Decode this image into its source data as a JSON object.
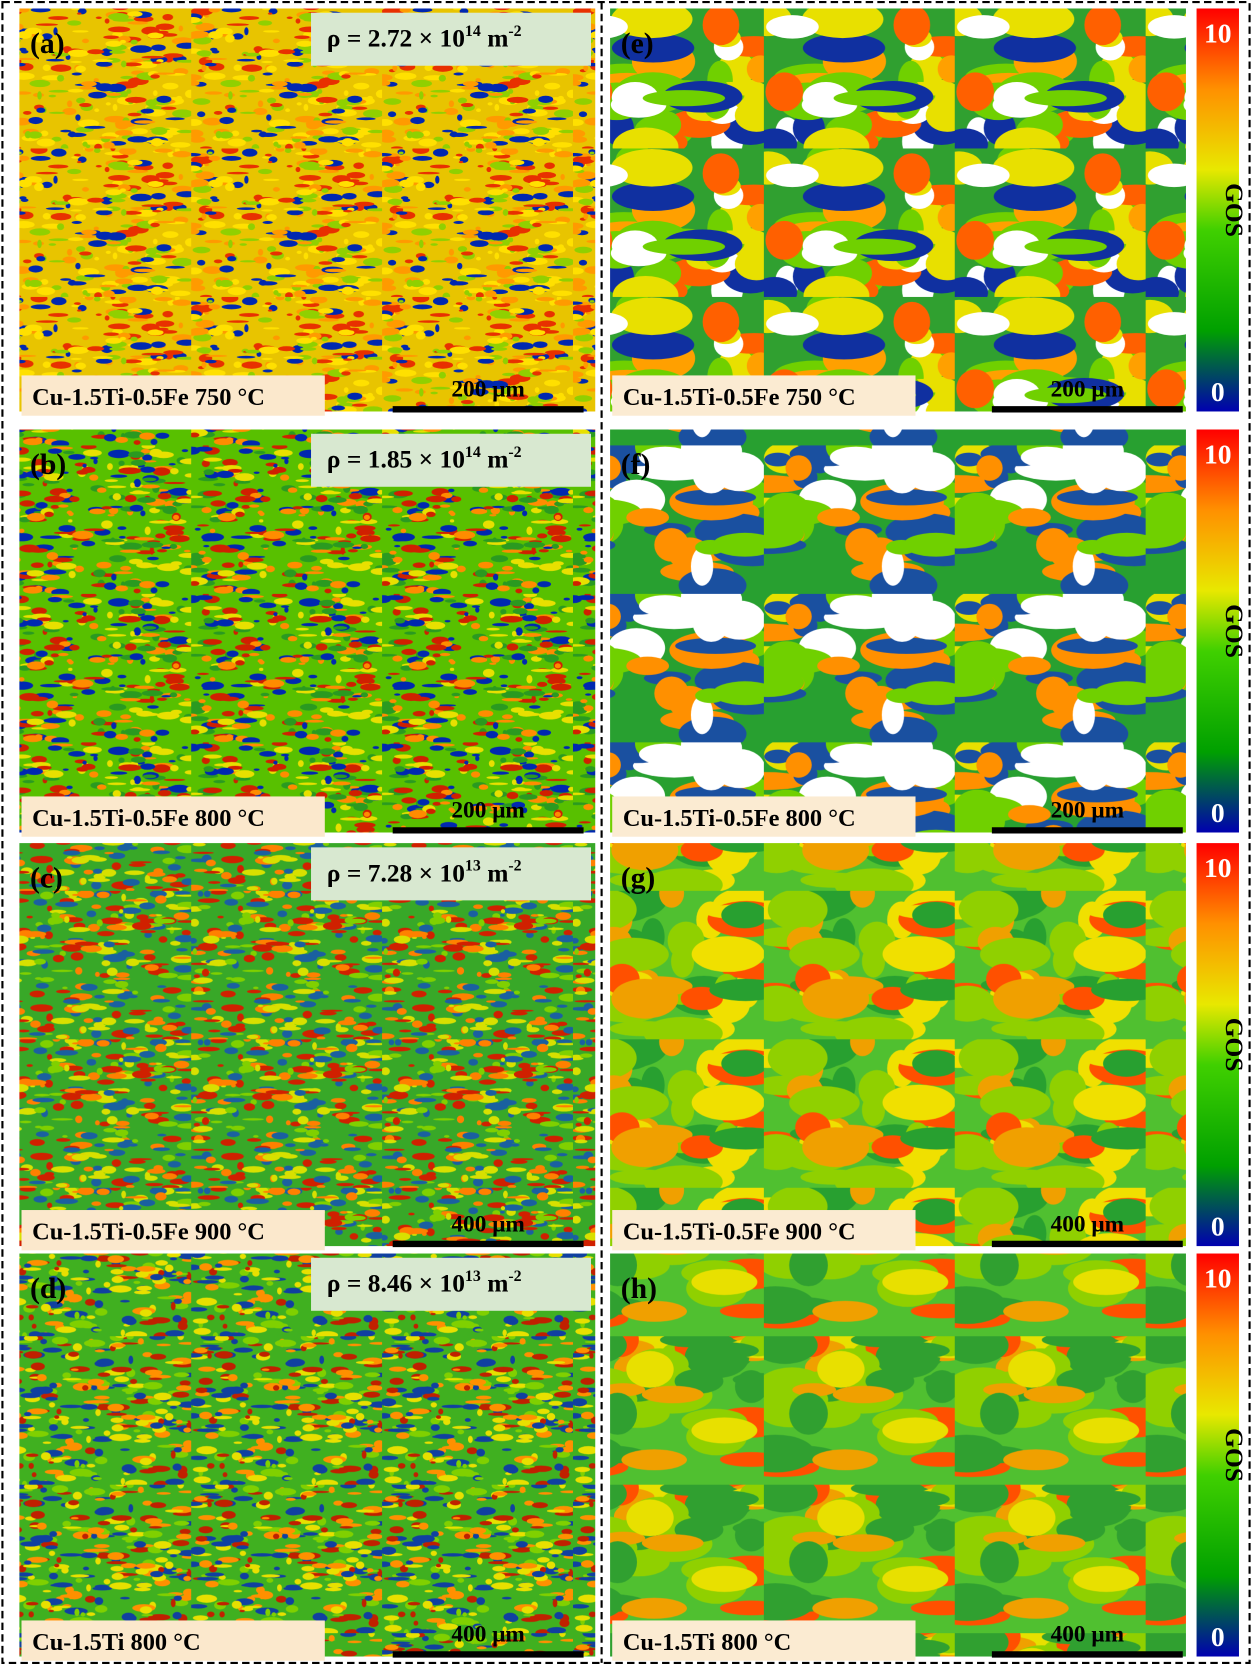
{
  "panels": [
    {
      "label": "(a)",
      "rho": {
        "base": "ρ = 2.72 × 10",
        "exp": "14",
        "unit": "m",
        "unit_exp": "-2"
      },
      "sample": "Cu-1.5Ti-0.5Fe  750 °C",
      "scale": "200 μm"
    },
    {
      "label": "(b)",
      "rho": {
        "base": "ρ = 1.85 × 10",
        "exp": "14",
        "unit": "m",
        "unit_exp": "-2"
      },
      "sample": "Cu-1.5Ti-0.5Fe  800 °C",
      "scale": "200 μm"
    },
    {
      "label": "(c)",
      "rho": {
        "base": "ρ = 7.28 × 10",
        "exp": "13",
        "unit": "m",
        "unit_exp": "-2"
      },
      "sample": "Cu-1.5Ti-0.5Fe  900 °C",
      "scale": "400 μm"
    },
    {
      "label": "(d)",
      "rho": {
        "base": "ρ = 8.46 × 10",
        "exp": "13",
        "unit": "m",
        "unit_exp": "-2"
      },
      "sample": "Cu-1.5Ti  800 °C",
      "scale": "400 μm"
    },
    {
      "label": "(e)",
      "sample": "Cu-1.5Ti-0.5Fe  750 °C",
      "scale": "200 μm"
    },
    {
      "label": "(f)",
      "sample": "Cu-1.5Ti-0.5Fe  800 °C",
      "scale": "200 μm"
    },
    {
      "label": "(g)",
      "sample": "Cu-1.5Ti-0.5Fe  900 °C",
      "scale": "400 μm"
    },
    {
      "label": "(h)",
      "sample": "Cu-1.5Ti  800 °C",
      "scale": "400 μm"
    }
  ],
  "colorbar": {
    "max": "10",
    "title": "GOS",
    "min": "0"
  }
}
